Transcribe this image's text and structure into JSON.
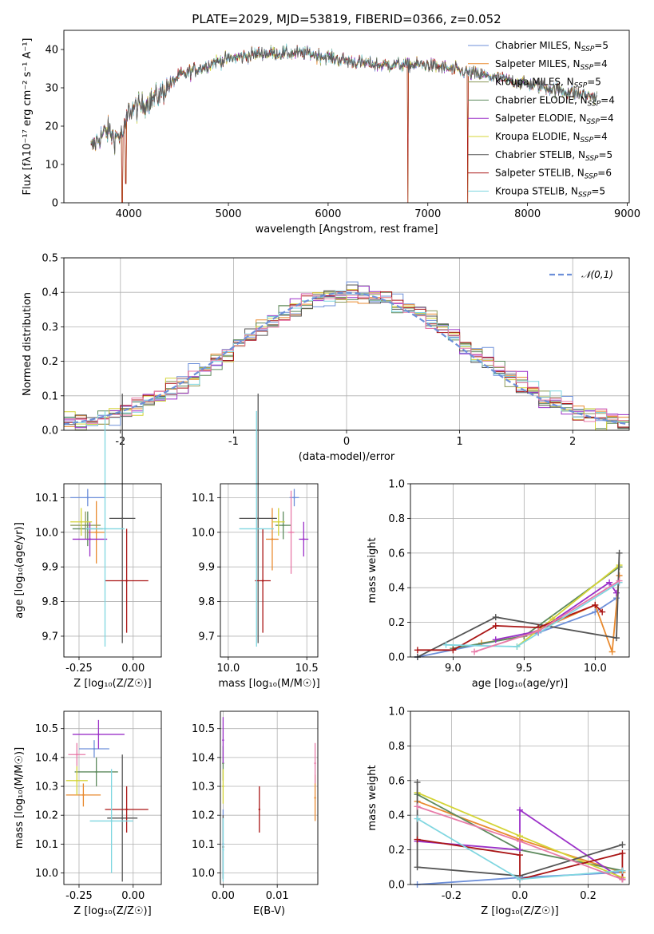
{
  "title": "PLATE=2029, MJD=53819, FIBERID=0366, z=0.052",
  "colors": {
    "series": [
      "#6d8fd9",
      "#e98a2f",
      "#8c9a5a",
      "#5d8a5d",
      "#9b30c8",
      "#d4d437",
      "#555555",
      "#aa1515",
      "#7fd6e0"
    ]
  },
  "legend_series": [
    {
      "name": "Chabrier MILES",
      "n": "5",
      "color": "#6d8fd9"
    },
    {
      "name": "Salpeter MILES",
      "n": "4",
      "color": "#e98a2f"
    },
    {
      "name": "Kroupa MILES",
      "n": "5",
      "color": "#8c9a5a"
    },
    {
      "name": "Chabrier ELODIE",
      "n": "4",
      "color": "#5d8a5d"
    },
    {
      "name": "Salpeter ELODIE",
      "n": "4",
      "color": "#9b30c8"
    },
    {
      "name": "Kroupa ELODIE",
      "n": "4",
      "color": "#d4d437"
    },
    {
      "name": "Chabrier STELIB",
      "n": "5",
      "color": "#555555"
    },
    {
      "name": "Salpeter STELIB",
      "n": "6",
      "color": "#aa1515"
    },
    {
      "name": "Kroupa STELIB",
      "n": "5",
      "color": "#7fd6e0"
    }
  ],
  "chart_data": [
    {
      "id": "spectrum",
      "type": "line",
      "xlabel": "wavelength [Angstrom, rest frame]",
      "ylabel": "Flux [fλ10⁻¹⁷ erg cm⁻² s⁻¹ A⁻¹]",
      "xlim": [
        3350,
        9020
      ],
      "ylim": [
        0,
        45
      ],
      "xticks": [
        4000,
        5000,
        6000,
        7000,
        8000,
        9000
      ],
      "yticks": [
        0,
        10,
        20,
        30,
        40
      ],
      "grid": false,
      "legend": "top-right",
      "continuum": [
        [
          3620,
          14
        ],
        [
          3700,
          17
        ],
        [
          3800,
          19
        ],
        [
          3850,
          17
        ],
        [
          3950,
          18
        ],
        [
          4000,
          24
        ],
        [
          4100,
          25
        ],
        [
          4300,
          28
        ],
        [
          4500,
          33
        ],
        [
          4700,
          35
        ],
        [
          4900,
          37
        ],
        [
          5100,
          38
        ],
        [
          5300,
          39
        ],
        [
          5500,
          39
        ],
        [
          5800,
          39
        ],
        [
          6000,
          38
        ],
        [
          6200,
          37
        ],
        [
          6500,
          36
        ],
        [
          6800,
          36
        ],
        [
          7000,
          36
        ],
        [
          7200,
          35
        ],
        [
          7400,
          34
        ],
        [
          7600,
          33
        ],
        [
          7800,
          32
        ],
        [
          8000,
          31
        ],
        [
          8200,
          30
        ],
        [
          8400,
          29
        ],
        [
          8600,
          28
        ],
        [
          8700,
          27.5
        ]
      ],
      "dips": [
        [
          3934,
          0
        ],
        [
          3969,
          5
        ],
        [
          6800,
          0
        ],
        [
          7400,
          0
        ]
      ]
    },
    {
      "id": "residuals",
      "type": "step",
      "xlabel": "(data-model)/error",
      "ylabel": "Normed distribution",
      "xlim": [
        -2.5,
        2.5
      ],
      "ylim": [
        0,
        0.5
      ],
      "xticks": [
        -2,
        -1,
        0,
        1,
        2
      ],
      "yticks": [
        0.0,
        0.1,
        0.2,
        0.3,
        0.4,
        0.5
      ],
      "grid": true,
      "legend": "top-right",
      "reference_curve": {
        "name": "𝒩(0,1)",
        "mu": 0,
        "sigma": 1,
        "color": "#6d8fd9"
      },
      "bin_width": 0.1
    },
    {
      "id": "age_vs_Z",
      "type": "scatter",
      "xlabel": "Z [log₁₀(Z/Z☉)]",
      "ylabel": "age  [log₁₀(age/yr)]",
      "xlim": [
        -0.32,
        0.13
      ],
      "ylim": [
        9.64,
        10.14
      ],
      "xticks": [
        -0.25,
        0.0
      ],
      "yticks": [
        9.7,
        9.8,
        9.9,
        10.0,
        10.1
      ],
      "grid": true,
      "points": [
        {
          "x": -0.21,
          "y": 10.1,
          "xerr": 0.08,
          "yerr": 0.025,
          "color": "#6d8fd9"
        },
        {
          "x": -0.17,
          "y": 10.0,
          "xerr": 0.04,
          "yerr": 0.09,
          "color": "#e98a2f"
        },
        {
          "x": -0.22,
          "y": 10.02,
          "xerr": 0.07,
          "yerr": 0.04,
          "color": "#8c9a5a"
        },
        {
          "x": -0.21,
          "y": 10.01,
          "xerr": 0.07,
          "yerr": 0.05,
          "color": "#5d8a5d"
        },
        {
          "x": -0.2,
          "y": 9.98,
          "xerr": 0.08,
          "yerr": 0.05,
          "color": "#9b30c8"
        },
        {
          "x": -0.24,
          "y": 10.03,
          "xerr": 0.05,
          "yerr": 0.04,
          "color": "#d4d437"
        },
        {
          "x": -0.05,
          "y": 10.04,
          "xerr": 0.06,
          "yerr": 0.36,
          "color": "#555555"
        },
        {
          "x": -0.03,
          "y": 9.86,
          "xerr": 0.1,
          "yerr": 0.15,
          "color": "#aa1515"
        },
        {
          "x": -0.13,
          "y": 10.01,
          "xerr": 0.09,
          "yerr": 0.34,
          "color": "#7fd6e0"
        }
      ]
    },
    {
      "id": "age_vs_mass",
      "type": "scatter",
      "xlabel": "mass [log₁₀(M/M☉)]",
      "ylabel": "",
      "xlim": [
        9.95,
        10.57
      ],
      "ylim": [
        9.64,
        10.14
      ],
      "xticks": [
        10.0,
        10.5
      ],
      "yticks": [
        9.7,
        9.8,
        9.9,
        10.0,
        10.1
      ],
      "grid": true,
      "points": [
        {
          "x": 10.42,
          "y": 10.1,
          "xerr": 0.03,
          "yerr": 0.025,
          "color": "#6d8fd9"
        },
        {
          "x": 10.28,
          "y": 9.98,
          "xerr": 0.04,
          "yerr": 0.09,
          "color": "#e98a2f"
        },
        {
          "x": 10.35,
          "y": 10.02,
          "xerr": 0.05,
          "yerr": 0.04,
          "color": "#5d8a5d"
        },
        {
          "x": 10.48,
          "y": 9.98,
          "xerr": 0.03,
          "yerr": 0.05,
          "color": "#9b30c8"
        },
        {
          "x": 10.32,
          "y": 10.03,
          "xerr": 0.04,
          "yerr": 0.04,
          "color": "#d4d437"
        },
        {
          "x": 10.19,
          "y": 10.04,
          "xerr": 0.12,
          "yerr": 0.36,
          "color": "#555555"
        },
        {
          "x": 10.22,
          "y": 9.86,
          "xerr": 0.05,
          "yerr": 0.15,
          "color": "#aa1515"
        },
        {
          "x": 10.18,
          "y": 10.01,
          "xerr": 0.11,
          "yerr": 0.34,
          "color": "#7fd6e0"
        },
        {
          "x": 10.4,
          "y": 10.0,
          "xerr": 0.02,
          "yerr": 0.12,
          "color": "#e87aa8"
        }
      ]
    },
    {
      "id": "weight_vs_age",
      "type": "line",
      "xlabel": "age  [log₁₀(age/yr)]",
      "ylabel": "mass weight",
      "xlim": [
        8.7,
        10.24
      ],
      "ylim": [
        0,
        1.0
      ],
      "xticks": [
        9.0,
        9.5,
        10.0
      ],
      "yticks": [
        0.0,
        0.2,
        0.4,
        0.6,
        0.8,
        1.0
      ],
      "grid": true,
      "series": [
        {
          "color": "#6d8fd9",
          "x": [
            8.75,
            9.6,
            10.0,
            10.15
          ],
          "y": [
            0.0,
            0.14,
            0.26,
            0.34
          ]
        },
        {
          "color": "#e98a2f",
          "x": [
            9.2,
            9.5,
            10.0,
            10.12,
            10.17
          ],
          "y": [
            0.08,
            0.12,
            0.3,
            0.03,
            0.47
          ]
        },
        {
          "color": "#5d8a5d",
          "x": [
            9.0,
            9.5,
            10.17
          ],
          "y": [
            0.05,
            0.12,
            0.52
          ]
        },
        {
          "color": "#9b30c8",
          "x": [
            9.3,
            9.6,
            10.1,
            10.15
          ],
          "y": [
            0.1,
            0.15,
            0.43,
            0.37
          ]
        },
        {
          "color": "#d4d437",
          "x": [
            9.45,
            9.7,
            10.17
          ],
          "y": [
            0.06,
            0.22,
            0.53
          ]
        },
        {
          "color": "#555555",
          "x": [
            8.75,
            9.3,
            10.15,
            10.17
          ],
          "y": [
            0.0,
            0.23,
            0.11,
            0.6
          ]
        },
        {
          "color": "#aa1515",
          "x": [
            8.75,
            9.0,
            9.3,
            9.6,
            10.0,
            10.05
          ],
          "y": [
            0.04,
            0.04,
            0.18,
            0.17,
            0.3,
            0.26
          ]
        },
        {
          "color": "#7fd6e0",
          "x": [
            8.95,
            9.45,
            10.17
          ],
          "y": [
            0.07,
            0.06,
            0.43
          ]
        },
        {
          "color": "#e87aa8",
          "x": [
            9.15,
            9.6,
            10.17
          ],
          "y": [
            0.03,
            0.15,
            0.44
          ]
        }
      ]
    },
    {
      "id": "mass_vs_Z",
      "type": "scatter",
      "xlabel": "Z [log₁₀(Z/Z☉)]",
      "ylabel": "mass [log₁₀(M/M☉)]",
      "xlim": [
        -0.32,
        0.13
      ],
      "ylim": [
        9.96,
        10.56
      ],
      "xticks": [
        -0.25,
        0.0
      ],
      "yticks": [
        10.0,
        10.1,
        10.2,
        10.3,
        10.4,
        10.5
      ],
      "grid": true,
      "points": [
        {
          "x": -0.18,
          "y": 10.43,
          "xerr": 0.07,
          "yerr": 0.03,
          "color": "#6d8fd9"
        },
        {
          "x": -0.23,
          "y": 10.27,
          "xerr": 0.08,
          "yerr": 0.04,
          "color": "#e98a2f"
        },
        {
          "x": -0.17,
          "y": 10.35,
          "xerr": 0.1,
          "yerr": 0.05,
          "color": "#5d8a5d"
        },
        {
          "x": -0.16,
          "y": 10.48,
          "xerr": 0.12,
          "yerr": 0.05,
          "color": "#9b30c8"
        },
        {
          "x": -0.26,
          "y": 10.32,
          "xerr": 0.05,
          "yerr": 0.05,
          "color": "#d4d437"
        },
        {
          "x": -0.05,
          "y": 10.19,
          "xerr": 0.07,
          "yerr": 0.22,
          "color": "#555555"
        },
        {
          "x": -0.03,
          "y": 10.22,
          "xerr": 0.1,
          "yerr": 0.08,
          "color": "#aa1515"
        },
        {
          "x": -0.1,
          "y": 10.18,
          "xerr": 0.1,
          "yerr": 0.18,
          "color": "#7fd6e0"
        },
        {
          "x": -0.26,
          "y": 10.41,
          "xerr": 0.04,
          "yerr": 0.04,
          "color": "#e87aa8"
        }
      ]
    },
    {
      "id": "mass_vs_ebv",
      "type": "scatter",
      "xlabel": "E(B-V)",
      "ylabel": "",
      "xlim": [
        -0.0005,
        0.0175
      ],
      "ylim": [
        9.96,
        10.56
      ],
      "xticks": [
        0.0,
        0.01
      ],
      "yticks": [
        10.0,
        10.1,
        10.2,
        10.3,
        10.4,
        10.5
      ],
      "grid": true,
      "points": [
        {
          "x": 0.0,
          "y": 10.1,
          "yerr": 0.12,
          "color": "#6d8fd9"
        },
        {
          "x": 0.017,
          "y": 10.26,
          "yerr": 0.08,
          "color": "#e98a2f"
        },
        {
          "x": 0.0,
          "y": 10.38,
          "yerr": 0.06,
          "color": "#5d8a5d"
        },
        {
          "x": 0.0,
          "y": 10.46,
          "yerr": 0.08,
          "color": "#9b30c8"
        },
        {
          "x": 0.0,
          "y": 10.3,
          "yerr": 0.06,
          "color": "#d4d437"
        },
        {
          "x": 0.0,
          "y": 10.09,
          "yerr": 0.11,
          "color": "#555555"
        },
        {
          "x": 0.0067,
          "y": 10.22,
          "yerr": 0.08,
          "color": "#aa1515"
        },
        {
          "x": 0.0,
          "y": 10.08,
          "yerr": 0.11,
          "color": "#7fd6e0"
        },
        {
          "x": 0.017,
          "y": 10.38,
          "yerr": 0.07,
          "color": "#e87aa8"
        }
      ]
    },
    {
      "id": "weight_vs_Z",
      "type": "line",
      "xlabel": "Z [log₁₀(Z/Z☉)]",
      "ylabel": "mass weight",
      "xlim": [
        -0.32,
        0.32
      ],
      "ylim": [
        0,
        1.0
      ],
      "xticks": [
        -0.2,
        0.0,
        0.2
      ],
      "yticks": [
        0.0,
        0.2,
        0.4,
        0.6,
        0.8,
        1.0
      ],
      "grid": true,
      "series": [
        {
          "color": "#6d8fd9",
          "x": [
            -0.3,
            0.0,
            0.3
          ],
          "y": [
            0.0,
            0.04,
            0.07
          ]
        },
        {
          "color": "#e98a2f",
          "x": [
            -0.3,
            0.0,
            0.3
          ],
          "y": [
            0.48,
            0.26,
            0.07
          ]
        },
        {
          "color": "#5d8a5d",
          "x": [
            -0.3,
            0.0,
            0.3
          ],
          "y": [
            0.52,
            0.2,
            0.08
          ]
        },
        {
          "color": "#9b30c8",
          "x": [
            -0.3,
            0.0,
            0.0,
            0.3
          ],
          "y": [
            0.25,
            0.2,
            0.43,
            0.03
          ]
        },
        {
          "color": "#d4d437",
          "x": [
            -0.3,
            0.0,
            0.3
          ],
          "y": [
            0.53,
            0.28,
            0.04
          ]
        },
        {
          "color": "#555555",
          "x": [
            -0.3,
            -0.3,
            0.0,
            0.3
          ],
          "y": [
            0.59,
            0.1,
            0.05,
            0.23
          ]
        },
        {
          "color": "#aa1515",
          "x": [
            -0.3,
            0.0,
            0.0,
            0.3,
            0.3
          ],
          "y": [
            0.26,
            0.17,
            0.03,
            0.18,
            0.03
          ]
        },
        {
          "color": "#7fd6e0",
          "x": [
            -0.3,
            0.0,
            0.3
          ],
          "y": [
            0.38,
            0.03,
            0.08
          ]
        },
        {
          "color": "#e87aa8",
          "x": [
            -0.3,
            0.0,
            0.3
          ],
          "y": [
            0.45,
            0.25,
            0.03
          ]
        }
      ]
    }
  ]
}
